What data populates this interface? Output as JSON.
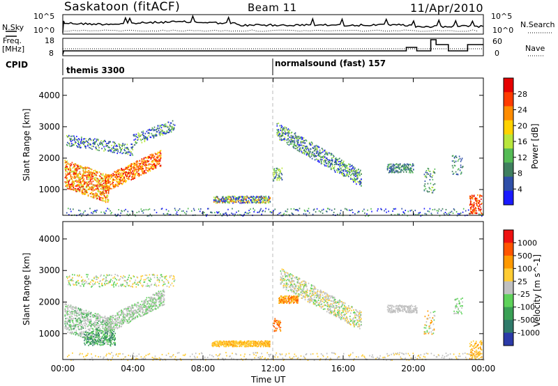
{
  "header": {
    "station": "Saskatoon (fitACF)",
    "beam": "Beam 11",
    "date": "11/Apr/2010"
  },
  "top_panels": {
    "nsky_label": "N.Sky",
    "nsky_ticks": [
      "10^5",
      "10^0"
    ],
    "nsearch_label": "N.Search",
    "nsearch_ticks": [
      "10^5",
      "10^0"
    ],
    "freq_label_1": "Freq.",
    "freq_label_2": "[MHz]",
    "freq_ticks": [
      "18",
      "8"
    ],
    "nave_label": "Nave",
    "nave_ticks": [
      "60",
      "0"
    ],
    "cpid_label": "CPID",
    "cpid_modes": [
      {
        "name": "themis 3300",
        "start_hour": 0
      },
      {
        "name": "normalsound (fast) 157",
        "start_hour": 12
      }
    ]
  },
  "chart_data": [
    {
      "type": "heatmap",
      "name": "power",
      "ylabel": "Slant Range [km]",
      "yticks": [
        "4000",
        "3000",
        "2000",
        "1000"
      ],
      "ylim": [
        180,
        4550
      ],
      "xlim": [
        0,
        24
      ],
      "colorbar_label": "Power [dB]",
      "colorbar_ticks": [
        "28",
        "24",
        "20",
        "16",
        "12",
        "8",
        "4"
      ],
      "colors": [
        "#1a1aff",
        "#2f4fa8",
        "#3f7f5f",
        "#55bb55",
        "#b8e63c",
        "#ffd200",
        "#ff8c00",
        "#ff3c00",
        "#e60000"
      ]
    },
    {
      "type": "heatmap",
      "name": "velocity",
      "ylabel": "Slant Range [km]",
      "yticks": [
        "4000",
        "3000",
        "2000",
        "1000"
      ],
      "ylim": [
        180,
        4550
      ],
      "xlim": [
        0,
        24
      ],
      "xlabel": "Time UT",
      "xticks": [
        "00:00",
        "04:00",
        "08:00",
        "12:00",
        "16:00",
        "20:00",
        "00:00"
      ],
      "colorbar_label": "Velocity [m s^-1]",
      "colorbar_ticks": [
        "1000",
        "500",
        "100",
        "25",
        "-25",
        "-100",
        "-500",
        "-1000"
      ],
      "colors": [
        "#2b3aa8",
        "#2f7a6a",
        "#3aa055",
        "#5ed25a",
        "#c0c0c0",
        "#ffcc33",
        "#ff9900",
        "#ff5500",
        "#ee1111"
      ]
    }
  ]
}
